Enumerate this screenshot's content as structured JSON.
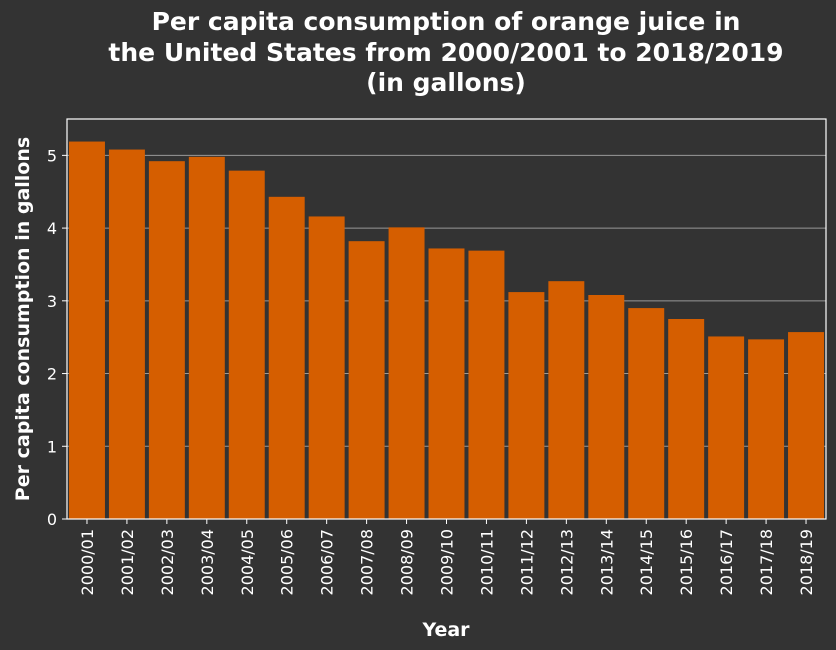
{
  "chart_data": {
    "type": "bar",
    "title_lines": [
      "Per capita consumption of orange juice in",
      "the United States from 2000/2001 to 2018/2019",
      "(in gallons)"
    ],
    "xlabel": "Year",
    "ylabel": "Per capita consumption in gallons",
    "categories": [
      "2000/01",
      "2001/02",
      "2002/03",
      "2003/04",
      "2004/05",
      "2005/06",
      "2006/07",
      "2007/08",
      "2008/09",
      "2009/10",
      "2010/11",
      "2011/12",
      "2012/13",
      "2013/14",
      "2014/15",
      "2015/16",
      "2016/17",
      "2017/18",
      "2018/19"
    ],
    "values": [
      5.19,
      5.08,
      4.92,
      4.98,
      4.79,
      4.43,
      4.16,
      3.82,
      4.01,
      3.72,
      3.69,
      3.12,
      3.27,
      3.08,
      2.9,
      2.75,
      2.51,
      2.47,
      2.57
    ],
    "yticks": [
      0,
      1,
      2,
      3,
      4,
      5
    ],
    "ylim": [
      0,
      5.5
    ],
    "grid": true,
    "colors": {
      "bar": "#d55e00",
      "background": "#333333",
      "grid": "#999999",
      "axis": "#ffffff",
      "text": "#ffffff"
    }
  }
}
